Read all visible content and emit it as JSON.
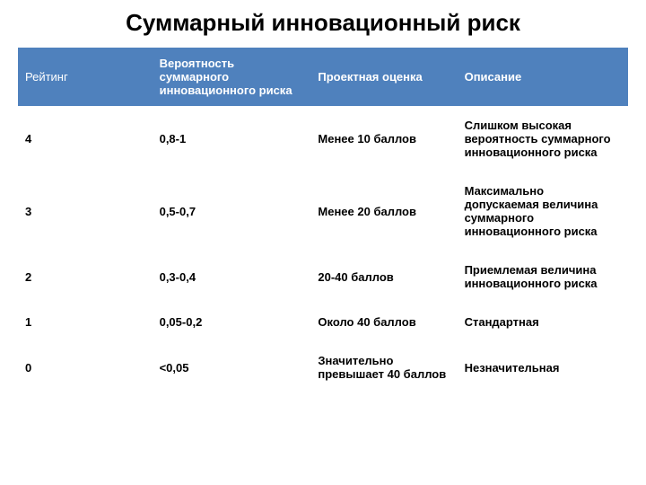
{
  "title": "Суммарный инновационный риск",
  "table": {
    "header_bg": "#4f81bd",
    "header_color": "#ffffff",
    "columns": [
      "Рейтинг",
      "Вероятность суммарного инновационного риска",
      "Проектная оценка",
      "Описание"
    ],
    "rows": [
      [
        "4",
        "0,8-1",
        "Менее 10 баллов",
        "Слишком высокая вероятность суммарного инновационного риска"
      ],
      [
        "3",
        "0,5-0,7",
        "Менее 20 баллов",
        "Максимально допускаемая величина суммарного инновационного риска"
      ],
      [
        "2",
        "0,3-0,4",
        "20-40 баллов",
        "Приемлемая величина инновационного риска"
      ],
      [
        "1",
        "0,05-0,2",
        "Около 40 баллов",
        "Стандартная"
      ],
      [
        "0",
        "<0,05",
        "Значительно превышает 40 баллов",
        "Незначительная"
      ]
    ]
  }
}
